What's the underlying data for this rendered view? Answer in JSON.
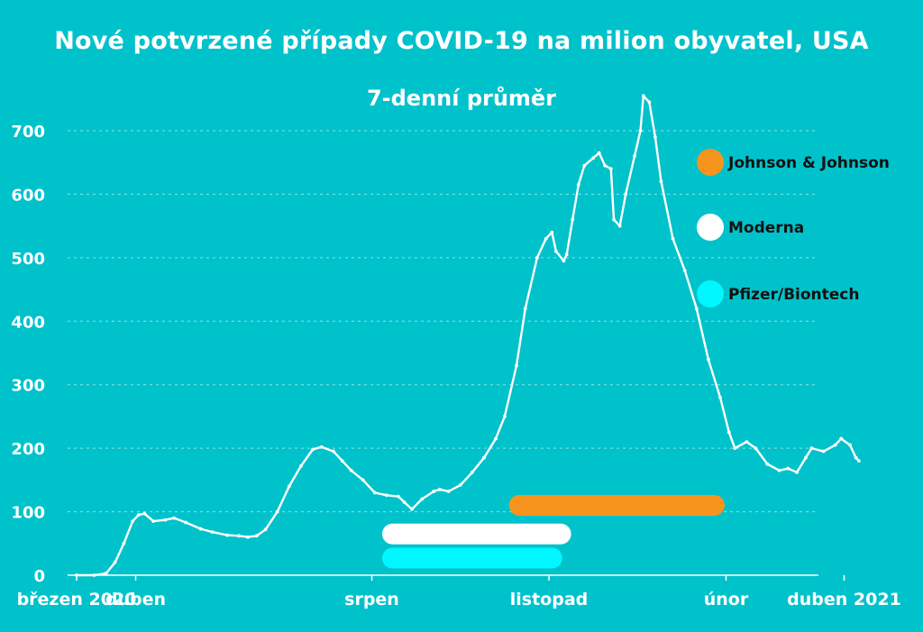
{
  "chart_data": {
    "type": "line",
    "title": "Nové potvrzené případy COVID-19 na milion obyvatel, USA",
    "subtitle": "7-denní průměr",
    "ylim": [
      0,
      700
    ],
    "yticks": [
      0,
      100,
      200,
      300,
      400,
      500,
      600,
      700
    ],
    "grid": true,
    "x_tick_labels": [
      {
        "label": "březen 2020",
        "month": 0
      },
      {
        "label": "duben",
        "month": 1
      },
      {
        "label": "srpen",
        "month": 5
      },
      {
        "label": "listopad",
        "month": 8
      },
      {
        "label": "únor",
        "month": 11
      },
      {
        "label": "duben 2021",
        "month": 13
      }
    ],
    "series": [
      {
        "values": [
          [
            0.0,
            0
          ],
          [
            0.3,
            0
          ],
          [
            0.5,
            3
          ],
          [
            0.65,
            20
          ],
          [
            0.8,
            50
          ],
          [
            0.95,
            85
          ],
          [
            1.05,
            95
          ],
          [
            1.15,
            97
          ],
          [
            1.3,
            85
          ],
          [
            1.5,
            87
          ],
          [
            1.65,
            90
          ],
          [
            1.85,
            83
          ],
          [
            2.1,
            73
          ],
          [
            2.3,
            68
          ],
          [
            2.55,
            63
          ],
          [
            2.75,
            62
          ],
          [
            2.9,
            60
          ],
          [
            3.05,
            62
          ],
          [
            3.2,
            72
          ],
          [
            3.4,
            100
          ],
          [
            3.6,
            140
          ],
          [
            3.8,
            172
          ],
          [
            4.0,
            198
          ],
          [
            4.15,
            202
          ],
          [
            4.35,
            195
          ],
          [
            4.5,
            180
          ],
          [
            4.65,
            165
          ],
          [
            4.85,
            150
          ],
          [
            5.05,
            130
          ],
          [
            5.25,
            126
          ],
          [
            5.45,
            124
          ],
          [
            5.55,
            115
          ],
          [
            5.68,
            104
          ],
          [
            5.85,
            120
          ],
          [
            6.05,
            132
          ],
          [
            6.15,
            135
          ],
          [
            6.3,
            132
          ],
          [
            6.5,
            142
          ],
          [
            6.7,
            162
          ],
          [
            6.9,
            185
          ],
          [
            7.1,
            215
          ],
          [
            7.25,
            250
          ],
          [
            7.45,
            330
          ],
          [
            7.6,
            420
          ],
          [
            7.8,
            500
          ],
          [
            7.95,
            530
          ],
          [
            8.05,
            540
          ],
          [
            8.12,
            510
          ],
          [
            8.25,
            495
          ],
          [
            8.3,
            505
          ],
          [
            8.4,
            560
          ],
          [
            8.5,
            615
          ],
          [
            8.6,
            645
          ],
          [
            8.75,
            657
          ],
          [
            8.85,
            665
          ],
          [
            8.95,
            645
          ],
          [
            9.05,
            640
          ],
          [
            9.1,
            560
          ],
          [
            9.2,
            550
          ],
          [
            9.3,
            600
          ],
          [
            9.45,
            660
          ],
          [
            9.55,
            700
          ],
          [
            9.6,
            755
          ],
          [
            9.7,
            745
          ],
          [
            9.8,
            690
          ],
          [
            9.9,
            620
          ],
          [
            10.1,
            530
          ],
          [
            10.3,
            480
          ],
          [
            10.5,
            420
          ],
          [
            10.7,
            340
          ],
          [
            10.9,
            280
          ],
          [
            11.05,
            225
          ],
          [
            11.15,
            200
          ],
          [
            11.35,
            210
          ],
          [
            11.5,
            200
          ],
          [
            11.7,
            175
          ],
          [
            11.9,
            165
          ],
          [
            12.05,
            168
          ],
          [
            12.2,
            162
          ],
          [
            12.35,
            185
          ],
          [
            12.45,
            200
          ],
          [
            12.65,
            195
          ],
          [
            12.85,
            205
          ],
          [
            12.95,
            215
          ],
          [
            13.1,
            205
          ],
          [
            13.2,
            185
          ],
          [
            13.25,
            180
          ]
        ]
      }
    ],
    "vaccines": [
      {
        "name": "Johnson & Johnson",
        "color": "#f7941d",
        "start_month": 7.5,
        "end_month": 10.8,
        "level": 110
      },
      {
        "name": "Moderna",
        "color": "#ffffff",
        "start_month": 5.35,
        "end_month": 8.2,
        "level": 65
      },
      {
        "name": "Pfizer/Biontech",
        "color": "#00f7ff",
        "start_month": 5.35,
        "end_month": 8.05,
        "level": 27
      }
    ]
  }
}
